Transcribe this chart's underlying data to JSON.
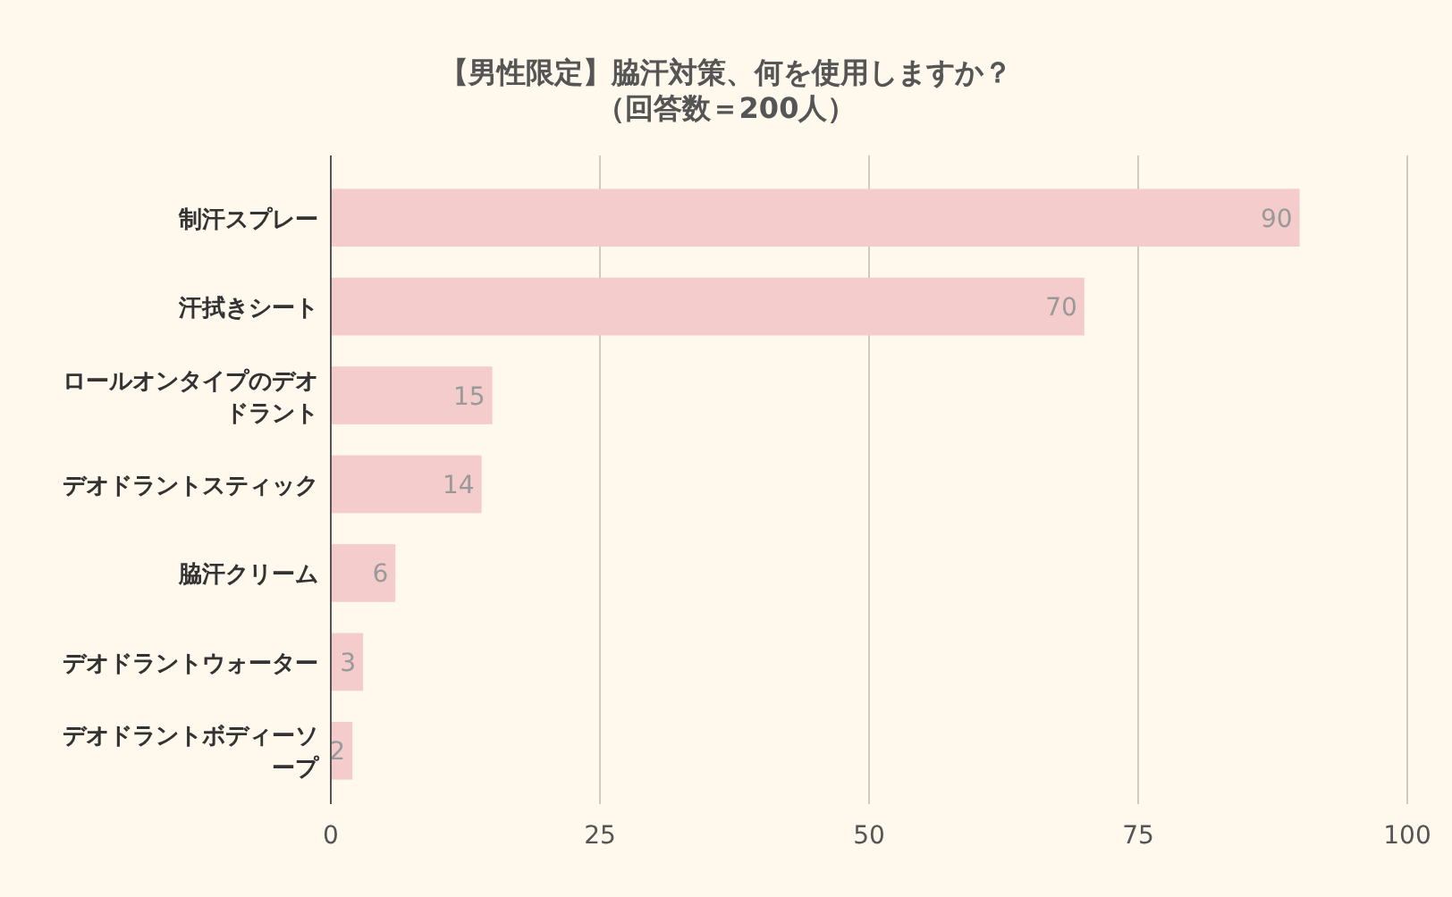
{
  "chart_data": {
    "type": "bar",
    "orientation": "horizontal",
    "title": "【男性限定】脇汗対策、何を使用しますか？",
    "subtitle": "（回答数＝200人）",
    "categories": [
      "制汗スプレー",
      "汗拭きシート",
      "ロールオンタイプのデオドラント",
      "デオドラントスティック",
      "脇汗クリーム",
      "デオドラントウォーター",
      "デオドラントボディーソープ"
    ],
    "values": [
      90,
      70,
      15,
      14,
      6,
      3,
      2
    ],
    "color": "#f4cccc",
    "xlim": [
      0,
      100
    ],
    "xticks": [
      0,
      25,
      50,
      75,
      100
    ],
    "grid": "x",
    "data_labels": true
  }
}
